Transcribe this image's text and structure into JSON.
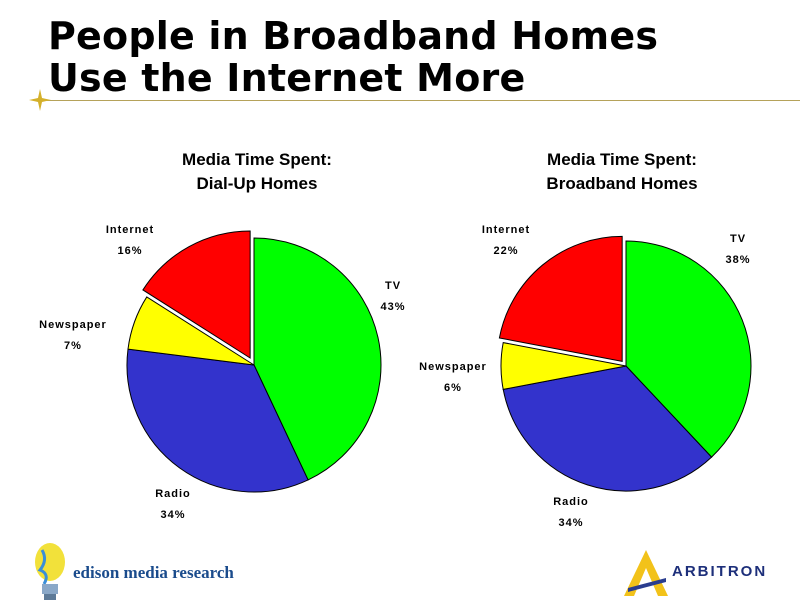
{
  "slide": {
    "title_line1": "People in Broadband Homes",
    "title_line2": "Use the Internet More"
  },
  "chart_data": [
    {
      "type": "pie",
      "title_line1": "Media Time Spent:",
      "title_line2": "Dial-Up Homes",
      "slices": [
        {
          "label": "TV",
          "value": 43,
          "value_label": "43%",
          "color": "#00ff00"
        },
        {
          "label": "Radio",
          "value": 34,
          "value_label": "34%",
          "color": "#3333cc"
        },
        {
          "label": "Newspaper",
          "value": 7,
          "value_label": "7%",
          "color": "#ffff00"
        },
        {
          "label": "Internet",
          "value": 16,
          "value_label": "16%",
          "color": "#ff0000",
          "exploded": true
        }
      ]
    },
    {
      "type": "pie",
      "title_line1": "Media Time Spent:",
      "title_line2": "Broadband Homes",
      "slices": [
        {
          "label": "TV",
          "value": 38,
          "value_label": "38%",
          "color": "#00ff00"
        },
        {
          "label": "Radio",
          "value": 34,
          "value_label": "34%",
          "color": "#3333cc"
        },
        {
          "label": "Newspaper",
          "value": 6,
          "value_label": "6%",
          "color": "#ffff00"
        },
        {
          "label": "Internet",
          "value": 22,
          "value_label": "22%",
          "color": "#ff0000",
          "exploded": true
        }
      ]
    }
  ],
  "logos": {
    "edison": "edison media research",
    "arbitron": "ARBITRON"
  }
}
